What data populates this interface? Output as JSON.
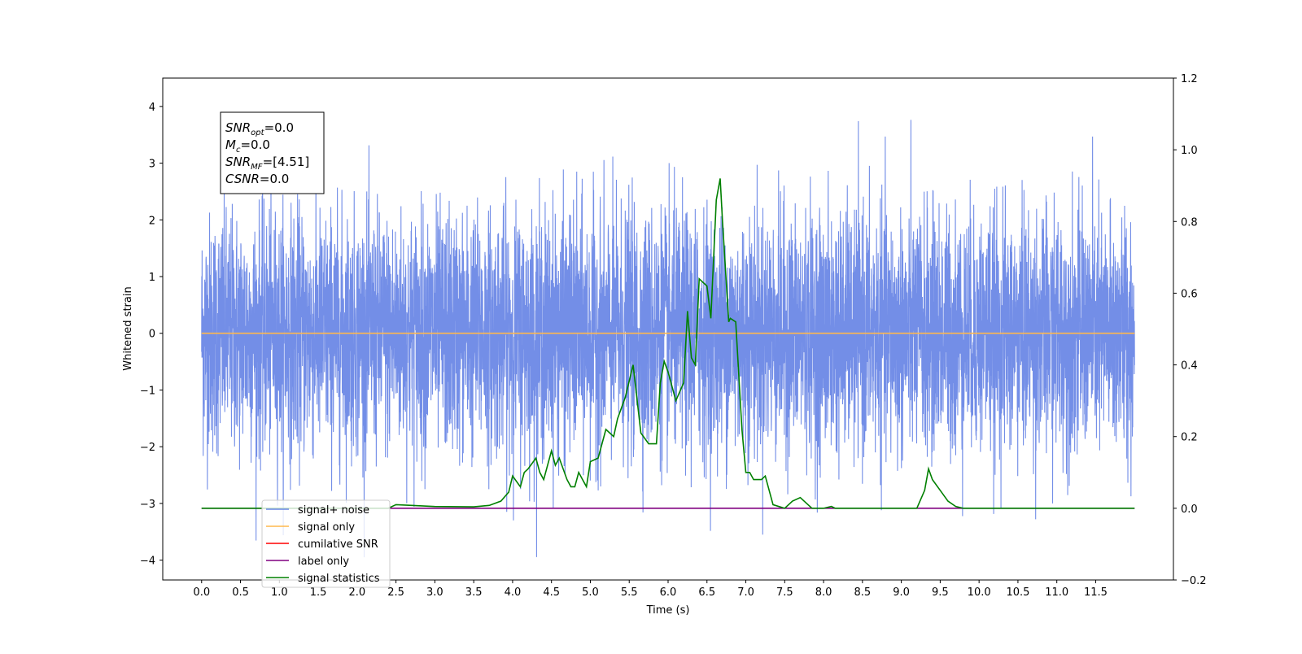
{
  "chart_data": {
    "type": "line",
    "xlabel": "Time (s)",
    "ylabel": "Whitened strain",
    "xlim": [
      -0.5,
      12.5
    ],
    "ylim": [
      -4.35,
      4.5
    ],
    "ylim_right": [
      -0.2,
      1.2
    ],
    "xticks": [
      "0.0",
      "0.5",
      "1.0",
      "1.5",
      "2.0",
      "2.5",
      "3.0",
      "3.5",
      "4.0",
      "4.5",
      "5.0",
      "5.5",
      "6.0",
      "6.5",
      "7.0",
      "7.5",
      "8.0",
      "8.5",
      "9.0",
      "9.5",
      "10.0",
      "10.5",
      "11.0",
      "11.5"
    ],
    "yticks_left": [
      "4",
      "3",
      "2",
      "1",
      "0",
      "−1",
      "−2",
      "−3",
      "−4"
    ],
    "yticks_right": [
      "1.2",
      "1.0",
      "0.8",
      "0.6",
      "0.4",
      "0.2",
      "0.0",
      "−0.2"
    ],
    "grid": false,
    "legend_position": "bottom-left",
    "annotation": [
      {
        "base": "SNR",
        "sub": "opt",
        "value": "=0.0"
      },
      {
        "base": "M",
        "sub": "c",
        "value": "=0.0"
      },
      {
        "base": "SNR",
        "sub": "MF",
        "value": "=[4.51]"
      },
      {
        "base": "CSNR",
        "sub": "",
        "value": "=0.0"
      }
    ],
    "series": [
      {
        "name": "signal+ noise",
        "color": "#6b88e6",
        "axis": "left",
        "kind": "noise",
        "x_range": [
          0,
          12
        ],
        "sigma": 1.0,
        "peak_max": 4.12,
        "peak_min": -3.95
      },
      {
        "name": "signal only",
        "color": "#ffb84d",
        "axis": "left",
        "x": [
          0,
          12
        ],
        "y": [
          0,
          0
        ]
      },
      {
        "name": "cumilative SNR",
        "color": "#ff0000",
        "axis": "right",
        "x": [],
        "y": []
      },
      {
        "name": "label only",
        "color": "#800080",
        "axis": "right",
        "x": [
          0,
          12
        ],
        "y": [
          0,
          0
        ]
      },
      {
        "name": "signal statistics",
        "color": "#008000",
        "axis": "right",
        "x": [
          0.0,
          2.0,
          2.4,
          2.5,
          2.7,
          3.0,
          3.5,
          3.7,
          3.85,
          3.95,
          4.0,
          4.1,
          4.15,
          4.2,
          4.3,
          4.35,
          4.4,
          4.5,
          4.55,
          4.6,
          4.7,
          4.75,
          4.8,
          4.85,
          4.95,
          5.0,
          5.1,
          5.2,
          5.3,
          5.35,
          5.45,
          5.55,
          5.65,
          5.75,
          5.85,
          5.9,
          5.95,
          6.0,
          6.05,
          6.1,
          6.2,
          6.25,
          6.3,
          6.35,
          6.4,
          6.5,
          6.55,
          6.62,
          6.67,
          6.7,
          6.78,
          6.8,
          6.87,
          6.95,
          7.0,
          7.05,
          7.1,
          7.2,
          7.25,
          7.3,
          7.35,
          7.5,
          7.6,
          7.7,
          7.75,
          7.85,
          8.0,
          8.1,
          8.15,
          8.3,
          9.2,
          9.3,
          9.35,
          9.4,
          9.5,
          9.6,
          9.7,
          9.8,
          10.0,
          12.0
        ],
        "y": [
          0.0,
          0.0,
          0.0,
          0.01,
          0.008,
          0.005,
          0.004,
          0.008,
          0.02,
          0.045,
          0.09,
          0.06,
          0.1,
          0.11,
          0.14,
          0.1,
          0.08,
          0.16,
          0.12,
          0.14,
          0.08,
          0.06,
          0.06,
          0.1,
          0.06,
          0.13,
          0.14,
          0.22,
          0.2,
          0.25,
          0.31,
          0.4,
          0.21,
          0.18,
          0.18,
          0.35,
          0.41,
          0.38,
          0.34,
          0.3,
          0.35,
          0.55,
          0.42,
          0.4,
          0.64,
          0.62,
          0.53,
          0.86,
          0.92,
          0.8,
          0.52,
          0.53,
          0.52,
          0.22,
          0.1,
          0.1,
          0.08,
          0.08,
          0.09,
          0.05,
          0.01,
          0.0,
          0.02,
          0.03,
          0.02,
          0.0,
          0.0,
          0.005,
          0.0,
          0.0,
          0.0,
          0.05,
          0.11,
          0.08,
          0.05,
          0.02,
          0.005,
          0.0,
          0.0,
          0.0
        ]
      }
    ]
  }
}
